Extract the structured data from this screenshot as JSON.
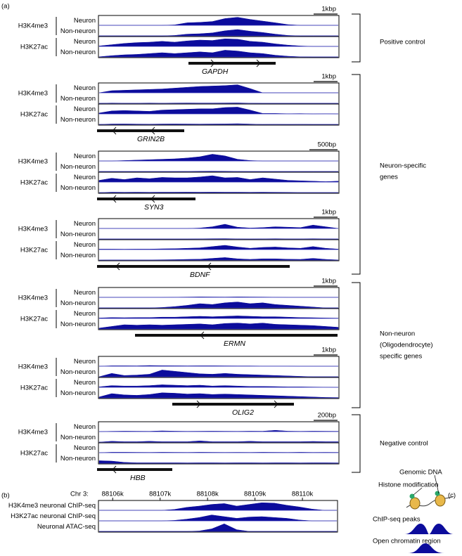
{
  "label_a": "(a)",
  "label_b": "(b)",
  "label_c": "(c)",
  "panels": [
    {
      "scale": "1kbp",
      "gene": "GAPDH",
      "marks": [
        "H3K4me3",
        "H3K27ac"
      ],
      "cells": [
        "Neuron",
        "Non-neuron",
        "Neuron",
        "Non-neuron"
      ],
      "signals": [
        [
          0,
          0,
          0,
          0,
          0,
          0,
          0.05,
          0.3,
          0.35,
          0.45,
          0.8,
          0.95,
          0.7,
          0.5,
          0.3,
          0.08,
          0,
          0,
          0,
          0
        ],
        [
          0,
          0,
          0,
          0,
          0,
          0,
          0.05,
          0.2,
          0.25,
          0.35,
          0.6,
          0.75,
          0.55,
          0.4,
          0.2,
          0.05,
          0,
          0,
          0,
          0
        ],
        [
          0.05,
          0.2,
          0.35,
          0.45,
          0.5,
          0.6,
          0.5,
          0.65,
          0.75,
          0.7,
          0.9,
          0.85,
          0.6,
          0.5,
          0.3,
          0.15,
          0.05,
          0,
          0,
          0
        ],
        [
          0.02,
          0.15,
          0.25,
          0.3,
          0.4,
          0.5,
          0.4,
          0.5,
          0.6,
          0.5,
          0.8,
          0.7,
          0.5,
          0.4,
          0.2,
          0.08,
          0.02,
          0,
          0,
          0
        ]
      ]
    },
    {
      "scale": "1kbp",
      "gene": "GRIN2B",
      "marks": [
        "H3K4me3",
        "H3K27ac"
      ],
      "cells": [
        "Neuron",
        "Non-neuron",
        "Neuron",
        "Non-neuron"
      ],
      "signals": [
        [
          0,
          0.25,
          0.3,
          0.35,
          0.4,
          0.45,
          0.55,
          0.65,
          0.75,
          0.8,
          0.85,
          0.95,
          0.5,
          0,
          0,
          0,
          0,
          0,
          0,
          0
        ],
        [
          0,
          0.03,
          0.02,
          0.02,
          0.03,
          0.02,
          0.03,
          0.04,
          0.03,
          0.03,
          0.04,
          0.05,
          0.02,
          0,
          0,
          0,
          0,
          0,
          0,
          0
        ],
        [
          0.1,
          0.35,
          0.4,
          0.35,
          0.3,
          0.45,
          0.5,
          0.55,
          0.6,
          0.6,
          0.75,
          0.8,
          0.45,
          0.05,
          0.05,
          0.02,
          0.03,
          0,
          0.02,
          0
        ],
        [
          0,
          0.05,
          0.06,
          0.04,
          0.03,
          0.05,
          0.06,
          0.05,
          0.04,
          0.05,
          0.06,
          0.08,
          0.04,
          0,
          0.02,
          0,
          0.02,
          0,
          0,
          0
        ]
      ]
    },
    {
      "scale": "500bp",
      "gene": "SYN3",
      "marks": [
        "H3K4me3",
        "H3K27ac"
      ],
      "cells": [
        "Neuron",
        "Non-neuron",
        "Neuron",
        "Non-neuron"
      ],
      "signals": [
        [
          0,
          0,
          0.05,
          0.1,
          0.15,
          0.2,
          0.25,
          0.35,
          0.5,
          0.8,
          0.6,
          0.2,
          0.05,
          0,
          0,
          0,
          0,
          0,
          0,
          0
        ],
        [
          0,
          0,
          0,
          0,
          0,
          0,
          0,
          0.02,
          0.03,
          0.04,
          0.03,
          0.02,
          0,
          0,
          0,
          0,
          0,
          0,
          0,
          0
        ],
        [
          0.2,
          0.45,
          0.3,
          0.5,
          0.4,
          0.55,
          0.5,
          0.5,
          0.6,
          0.75,
          0.5,
          0.55,
          0.3,
          0.5,
          0.35,
          0.2,
          0.15,
          0.1,
          0.05,
          0.1
        ],
        [
          0,
          0.05,
          0.04,
          0.05,
          0.04,
          0.05,
          0.05,
          0.06,
          0.05,
          0.06,
          0.05,
          0.05,
          0.04,
          0.05,
          0.04,
          0.03,
          0.02,
          0.02,
          0.02,
          0.02
        ]
      ]
    },
    {
      "scale": "1kbp",
      "gene": "BDNF",
      "marks": [
        "H3K4me3",
        "H3K27ac"
      ],
      "cells": [
        "Neuron",
        "Non-neuron",
        "Neuron",
        "Non-neuron"
      ],
      "signals": [
        [
          0,
          0,
          0,
          0,
          0,
          0,
          0,
          0,
          0.05,
          0.2,
          0.5,
          0.15,
          0.05,
          0.1,
          0.2,
          0.15,
          0.1,
          0.4,
          0.2,
          0
        ],
        [
          0,
          0,
          0,
          0,
          0,
          0,
          0,
          0,
          0.02,
          0.03,
          0.04,
          0.02,
          0,
          0.02,
          0.03,
          0.02,
          0.02,
          0.03,
          0.02,
          0
        ],
        [
          0.05,
          0.05,
          0.04,
          0.05,
          0.05,
          0.08,
          0.1,
          0.15,
          0.2,
          0.35,
          0.5,
          0.3,
          0.15,
          0.25,
          0.3,
          0.2,
          0.15,
          0.35,
          0.15,
          0.05
        ],
        [
          0,
          0.02,
          0.02,
          0.02,
          0.02,
          0.03,
          0.05,
          0.08,
          0.1,
          0.2,
          0.3,
          0.15,
          0.08,
          0.15,
          0.15,
          0.1,
          0.08,
          0.2,
          0.08,
          0.02
        ]
      ]
    },
    {
      "scale": "1kbp",
      "gene": "ERMN",
      "marks": [
        "H3K4me3",
        "H3K27ac"
      ],
      "cells": [
        "Neuron",
        "Non-neuron",
        "Neuron",
        "Non-neuron"
      ],
      "signals": [
        [
          0,
          0,
          0,
          0,
          0,
          0,
          0.02,
          0.03,
          0.05,
          0.04,
          0.03,
          0.05,
          0.04,
          0.03,
          0.02,
          0,
          0,
          0,
          0,
          0
        ],
        [
          0,
          0,
          0,
          0,
          0,
          0.05,
          0.15,
          0.3,
          0.5,
          0.4,
          0.6,
          0.7,
          0.5,
          0.6,
          0.4,
          0.3,
          0.2,
          0.1,
          0,
          0
        ],
        [
          0.05,
          0.1,
          0.08,
          0.1,
          0.1,
          0.15,
          0.15,
          0.2,
          0.25,
          0.2,
          0.25,
          0.3,
          0.25,
          0.2,
          0.2,
          0.15,
          0.1,
          0.08,
          0.05,
          0.03
        ],
        [
          0.1,
          0.3,
          0.5,
          0.45,
          0.5,
          0.45,
          0.5,
          0.55,
          0.6,
          0.5,
          0.65,
          0.7,
          0.6,
          0.7,
          0.55,
          0.5,
          0.45,
          0.4,
          0.3,
          0.2
        ]
      ]
    },
    {
      "scale": "1kbp",
      "gene": "OLIG2",
      "marks": [
        "H3K4me3",
        "H3K27ac"
      ],
      "cells": [
        "Neuron",
        "Non-neuron",
        "Neuron",
        "Non-neuron"
      ],
      "signals": [
        [
          0,
          0.05,
          0.05,
          0.04,
          0.08,
          0.06,
          0.05,
          0.04,
          0.05,
          0.05,
          0.04,
          0.03,
          0.03,
          0.02,
          0.02,
          0.02,
          0,
          0,
          0,
          0
        ],
        [
          0,
          0.4,
          0.15,
          0.2,
          0.3,
          0.8,
          0.65,
          0.5,
          0.35,
          0.3,
          0.4,
          0.3,
          0.25,
          0.2,
          0.15,
          0.1,
          0.05,
          0,
          0,
          0
        ],
        [
          0.05,
          0.2,
          0.15,
          0.15,
          0.2,
          0.3,
          0.25,
          0.2,
          0.25,
          0.15,
          0.2,
          0.15,
          0.1,
          0.1,
          0.08,
          0.05,
          0.05,
          0.03,
          0.02,
          0
        ],
        [
          0.1,
          0.5,
          0.35,
          0.3,
          0.4,
          0.6,
          0.55,
          0.45,
          0.5,
          0.4,
          0.45,
          0.4,
          0.35,
          0.3,
          0.25,
          0.2,
          0.15,
          0.1,
          0.05,
          0.03
        ]
      ]
    },
    {
      "scale": "200bp",
      "gene": "HBB",
      "marks": [
        "H3K4me3",
        "H3K27ac"
      ],
      "cells": [
        "Neuron",
        "Non-neuron",
        "Neuron",
        "Non-neuron"
      ],
      "signals": [
        [
          0,
          0.03,
          0.05,
          0.04,
          0.03,
          0.08,
          0.05,
          0.03,
          0.04,
          0.05,
          0.04,
          0.03,
          0.05,
          0.04,
          0.15,
          0.05,
          0.03,
          0.05,
          0.04,
          0.03
        ],
        [
          0,
          0.1,
          0.05,
          0.05,
          0.1,
          0.05,
          0.05,
          0.05,
          0.15,
          0.05,
          0.05,
          0.05,
          0.1,
          0.05,
          0.05,
          0.05,
          0.05,
          0.08,
          0.05,
          0.05
        ],
        [
          0,
          0.05,
          0.05,
          0.04,
          0.03,
          0.05,
          0.04,
          0.03,
          0.05,
          0.04,
          0.03,
          0.04,
          0.03,
          0.05,
          0.04,
          0.03,
          0.05,
          0.03,
          0.04,
          0.03
        ],
        [
          0.3,
          0.25,
          0.1,
          0.05,
          0.05,
          0.05,
          0.05,
          0.04,
          0.05,
          0.05,
          0.04,
          0.05,
          0.05,
          0.04,
          0.05,
          0.05,
          0.04,
          0.05,
          0.05,
          0.04
        ]
      ]
    }
  ],
  "groups": [
    {
      "lines": [
        "Positive control"
      ]
    },
    {
      "lines": [
        "Neuron-specific",
        "genes"
      ]
    },
    {
      "lines": [
        "Non-neuron",
        "(Oligodendrocyte)",
        "specific genes"
      ]
    },
    {
      "lines": [
        "Negative control"
      ]
    }
  ],
  "panel_b": {
    "chr": "Chr 3:",
    "xlim": [
      88105700,
      88110740
    ],
    "xticks": [
      {
        "value": 88106000,
        "label": "88106k"
      },
      {
        "value": 88107000,
        "label": "88107k"
      },
      {
        "value": 88108000,
        "label": "88108k"
      },
      {
        "value": 88109000,
        "label": "88109k"
      },
      {
        "value": 88110000,
        "label": "88110k"
      }
    ],
    "tracks": [
      {
        "name": "H3K4me3 neuronal ChIP-seq",
        "signal": [
          0,
          0,
          0,
          0,
          0,
          0,
          0.1,
          0.35,
          0.5,
          0.7,
          0.8,
          0.5,
          0.7,
          0.9,
          0.85,
          0.6,
          0.4,
          0.15,
          0,
          0
        ]
      },
      {
        "name": "H3K27ac neuronal ChIP-seq",
        "signal": [
          0,
          0,
          0,
          0,
          0,
          0,
          0.05,
          0.2,
          0.4,
          0.7,
          0.5,
          0.3,
          0.45,
          0.5,
          0.4,
          0.3,
          0.1,
          0,
          0,
          0
        ]
      },
      {
        "name": "Neuronal ATAC-seq",
        "signal": [
          0,
          0,
          0,
          0,
          0,
          0,
          0,
          0,
          0.05,
          0.3,
          0.9,
          0.2,
          0,
          0,
          0,
          0,
          0,
          0,
          0,
          0
        ]
      }
    ]
  },
  "panel_c": {
    "dna": "Genomic DNA",
    "histone": "Histone modification",
    "chip": "ChIP-seq peaks",
    "open": "Open chromatin region"
  }
}
